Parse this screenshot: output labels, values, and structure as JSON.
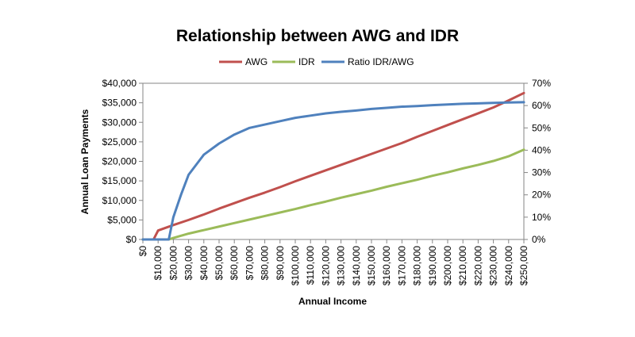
{
  "chart_data": {
    "type": "line",
    "title": "Relationship between AWG and IDR",
    "xlabel": "Annual Income",
    "ylabel": "Annual Loan Payments",
    "y2label": "",
    "x_tick_labels": [
      "$0",
      "$10,000",
      "$20,000",
      "$30,000",
      "$40,000",
      "$50,000",
      "$60,000",
      "$70,000",
      "$80,000",
      "$90,000",
      "$100,000",
      "$110,000",
      "$120,000",
      "$130,000",
      "$140,000",
      "$150,000",
      "$160,000",
      "$170,000",
      "$180,000",
      "$190,000",
      "$200,000",
      "$210,000",
      "$220,000",
      "$230,000",
      "$240,000",
      "$250,000"
    ],
    "y_tick_labels": [
      "$0",
      "$5,000",
      "$10,000",
      "$15,000",
      "$20,000",
      "$25,000",
      "$30,000",
      "$35,000",
      "$40,000"
    ],
    "y2_tick_labels": [
      "0%",
      "10%",
      "20%",
      "30%",
      "40%",
      "50%",
      "60%",
      "70%"
    ],
    "xlim": [
      0,
      250000
    ],
    "ylim": [
      0,
      40000
    ],
    "y2lim": [
      0,
      0.7
    ],
    "grid": false,
    "legend_position": "top",
    "series": [
      {
        "name": "AWG",
        "axis": "left",
        "color": "#C0504D",
        "points": [
          [
            0,
            0
          ],
          [
            7000,
            0
          ],
          [
            10000,
            2300
          ],
          [
            20000,
            3700
          ],
          [
            30000,
            5000
          ],
          [
            40000,
            6400
          ],
          [
            50000,
            7900
          ],
          [
            60000,
            9300
          ],
          [
            70000,
            10700
          ],
          [
            80000,
            12000
          ],
          [
            90000,
            13400
          ],
          [
            100000,
            14900
          ],
          [
            110000,
            16300
          ],
          [
            120000,
            17700
          ],
          [
            130000,
            19100
          ],
          [
            140000,
            20500
          ],
          [
            150000,
            21900
          ],
          [
            160000,
            23300
          ],
          [
            170000,
            24700
          ],
          [
            180000,
            26300
          ],
          [
            190000,
            27800
          ],
          [
            200000,
            29300
          ],
          [
            210000,
            30800
          ],
          [
            220000,
            32300
          ],
          [
            230000,
            33800
          ],
          [
            240000,
            35600
          ],
          [
            250000,
            37500
          ]
        ]
      },
      {
        "name": "IDR",
        "axis": "left",
        "color": "#9BBB59",
        "points": [
          [
            0,
            0
          ],
          [
            17000,
            0
          ],
          [
            20000,
            400
          ],
          [
            30000,
            1500
          ],
          [
            40000,
            2400
          ],
          [
            50000,
            3300
          ],
          [
            60000,
            4200
          ],
          [
            70000,
            5100
          ],
          [
            80000,
            6000
          ],
          [
            90000,
            6900
          ],
          [
            100000,
            7800
          ],
          [
            110000,
            8800
          ],
          [
            120000,
            9700
          ],
          [
            130000,
            10700
          ],
          [
            140000,
            11600
          ],
          [
            150000,
            12500
          ],
          [
            160000,
            13500
          ],
          [
            170000,
            14400
          ],
          [
            180000,
            15300
          ],
          [
            190000,
            16300
          ],
          [
            200000,
            17200
          ],
          [
            210000,
            18200
          ],
          [
            220000,
            19100
          ],
          [
            230000,
            20100
          ],
          [
            240000,
            21300
          ],
          [
            250000,
            23000
          ]
        ]
      },
      {
        "name": "Ratio IDR/AWG",
        "axis": "right",
        "color": "#4F81BD",
        "points": [
          [
            0,
            0
          ],
          [
            17000,
            0
          ],
          [
            20000,
            0.1
          ],
          [
            25000,
            0.2
          ],
          [
            30000,
            0.29
          ],
          [
            40000,
            0.38
          ],
          [
            50000,
            0.43
          ],
          [
            60000,
            0.47
          ],
          [
            70000,
            0.5
          ],
          [
            80000,
            0.515
          ],
          [
            90000,
            0.53
          ],
          [
            100000,
            0.545
          ],
          [
            110000,
            0.555
          ],
          [
            120000,
            0.565
          ],
          [
            130000,
            0.572
          ],
          [
            140000,
            0.578
          ],
          [
            150000,
            0.585
          ],
          [
            160000,
            0.59
          ],
          [
            170000,
            0.595
          ],
          [
            180000,
            0.598
          ],
          [
            190000,
            0.602
          ],
          [
            200000,
            0.605
          ],
          [
            210000,
            0.608
          ],
          [
            220000,
            0.61
          ],
          [
            230000,
            0.612
          ],
          [
            240000,
            0.614
          ],
          [
            250000,
            0.615
          ]
        ]
      }
    ]
  }
}
